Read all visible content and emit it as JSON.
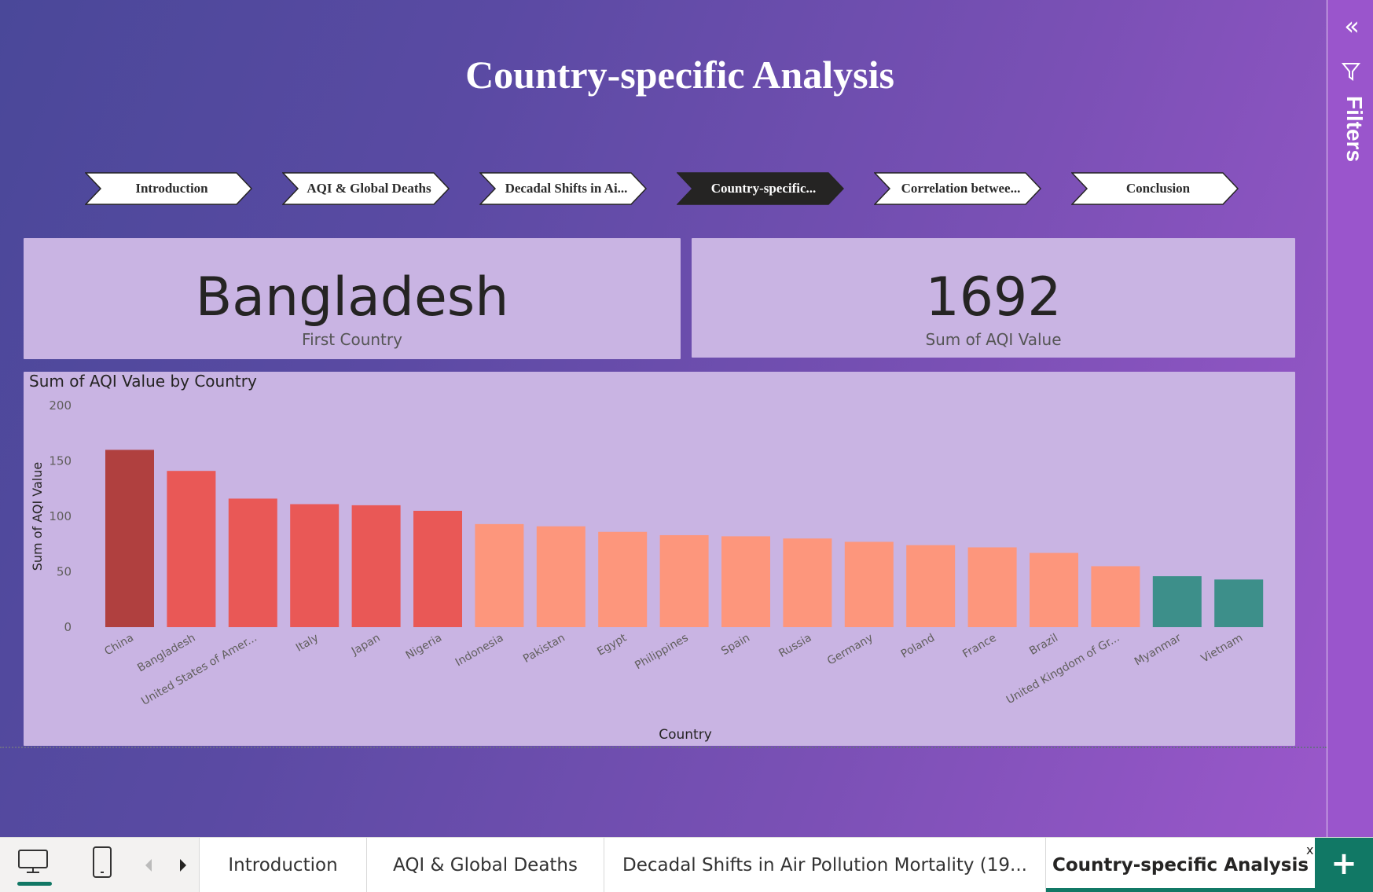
{
  "page": {
    "title": "Country-specific Analysis"
  },
  "nav_buttons": [
    {
      "label": "Introduction",
      "active": false
    },
    {
      "label": "AQI & Global Deaths",
      "active": false
    },
    {
      "label": "Decadal Shifts in Ai...",
      "active": false
    },
    {
      "label": "Country-specific...",
      "active": true
    },
    {
      "label": "Correlation betwee...",
      "active": false
    },
    {
      "label": "Conclusion",
      "active": false
    }
  ],
  "cards": {
    "country": {
      "value": "Bangladesh",
      "label": "First Country"
    },
    "aqi": {
      "value": "1692",
      "label": "Sum of AQI Value"
    }
  },
  "filters_pane": {
    "label": "Filters",
    "collapse_icon": "double-chevron-left-icon",
    "filter_icon": "funnel-icon"
  },
  "colors": {
    "dark_red": "#b0403f",
    "red": "#e95856",
    "salmon": "#fd967c",
    "teal": "#3d8f8a",
    "accent": "#117865"
  },
  "chart_data": {
    "type": "bar",
    "title": "Sum of AQI Value by Country",
    "xlabel": "Country",
    "ylabel": "Sum of AQI Value",
    "ylim": [
      0,
      200
    ],
    "yticks": [
      0,
      50,
      100,
      150,
      200
    ],
    "categories": [
      "China",
      "Bangladesh",
      "United States of Amer...",
      "Italy",
      "Japan",
      "Nigeria",
      "Indonesia",
      "Pakistan",
      "Egypt",
      "Philippines",
      "Spain",
      "Russia",
      "Germany",
      "Poland",
      "France",
      "Brazil",
      "United Kingdom of Gr...",
      "Myanmar",
      "Vietnam"
    ],
    "values": [
      160,
      141,
      116,
      111,
      110,
      105,
      93,
      91,
      86,
      83,
      82,
      80,
      77,
      74,
      72,
      67,
      55,
      46,
      43
    ],
    "bar_colors": [
      "#b0403f",
      "#e95856",
      "#e95856",
      "#e95856",
      "#e95856",
      "#e95856",
      "#fd967c",
      "#fd967c",
      "#fd967c",
      "#fd967c",
      "#fd967c",
      "#fd967c",
      "#fd967c",
      "#fd967c",
      "#fd967c",
      "#fd967c",
      "#fd967c",
      "#3d8f8a",
      "#3d8f8a"
    ]
  },
  "tabs": [
    {
      "label": "Introduction",
      "active": false
    },
    {
      "label": "AQI & Global Deaths",
      "active": false
    },
    {
      "label": "Decadal Shifts in Air Pollution Mortality (19...",
      "active": false
    },
    {
      "label": "Country-specific Analysis",
      "active": true
    }
  ],
  "tab_bar": {
    "close_label": "x",
    "add_label": "+",
    "icons": [
      "desktop-view-icon",
      "mobile-view-icon",
      "previous-page-icon",
      "next-page-icon"
    ]
  }
}
